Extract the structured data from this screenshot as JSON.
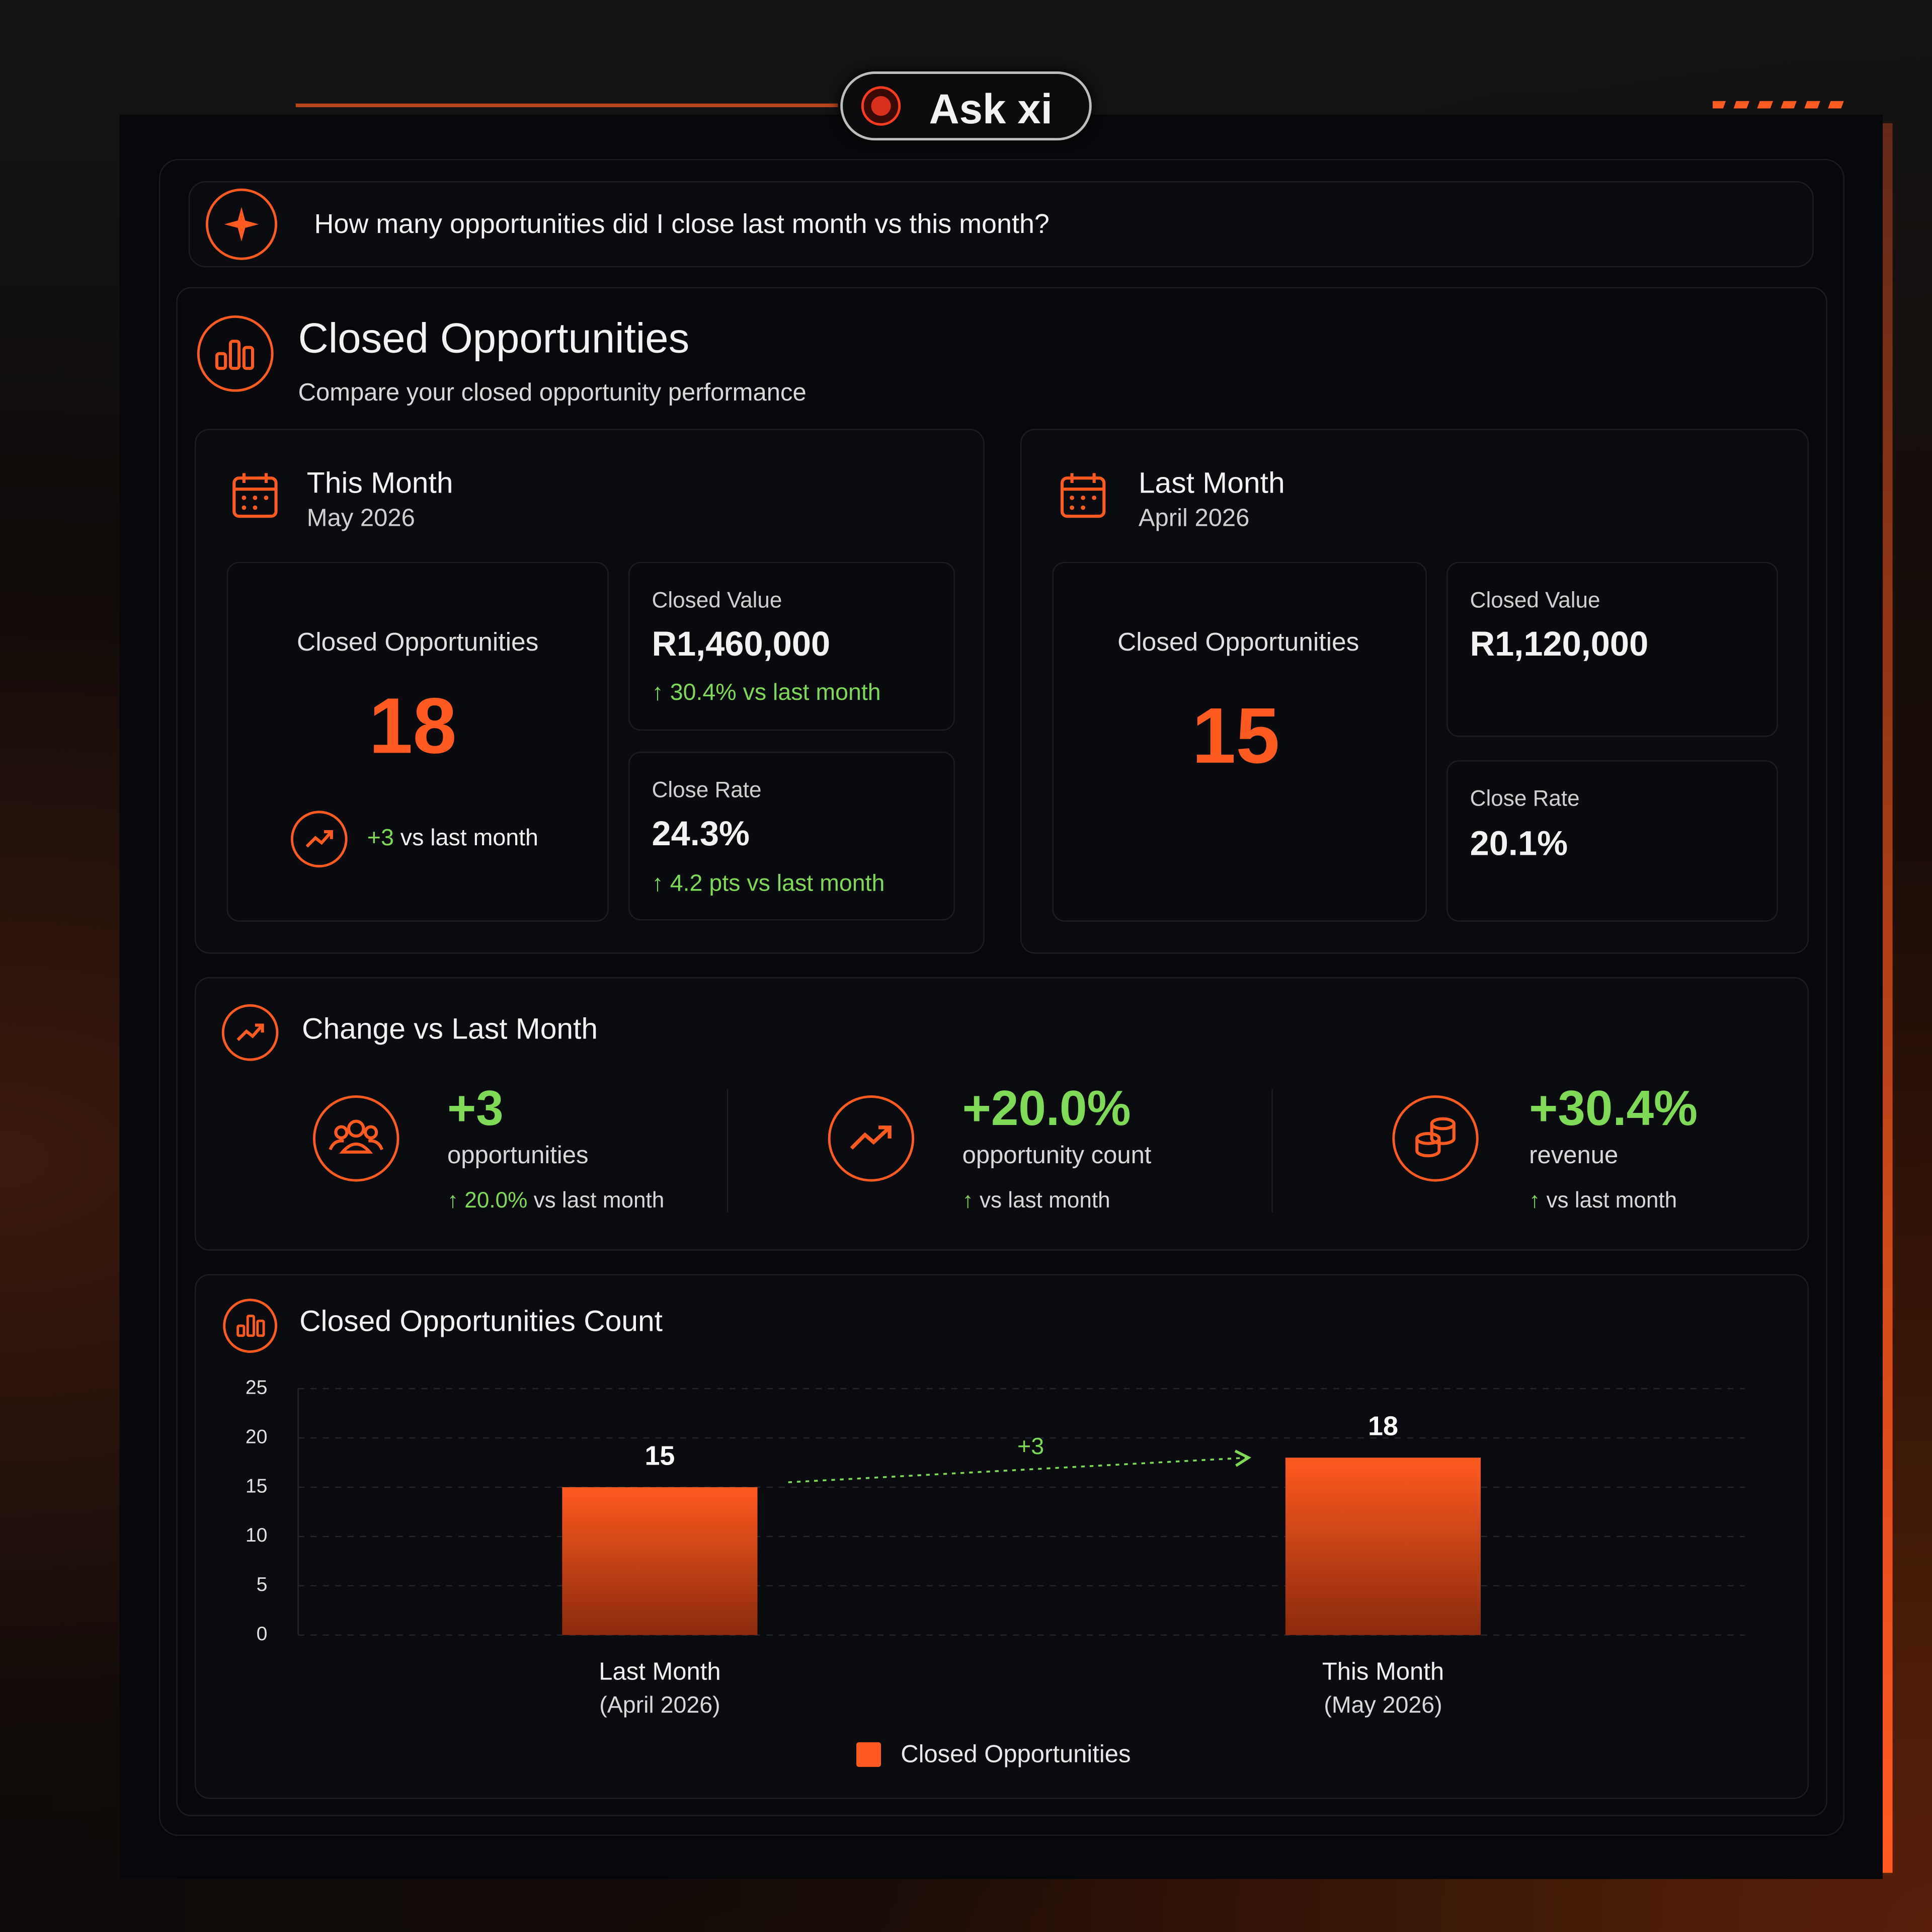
{
  "header": {
    "title": "Ask xi"
  },
  "question": "How many opportunities did I close last month vs this month?",
  "report": {
    "title": "Closed Opportunities",
    "subtitle": "Compare your closed opportunity performance"
  },
  "periods": [
    {
      "title": "This Month",
      "date": "May 2026",
      "count_label": "Closed Opportunities",
      "count": 18,
      "count_change": "+3",
      "count_change_text": "vs last month",
      "value_label": "Closed Value",
      "value": "R1,460,000",
      "value_change": "30.4% vs last month",
      "rate_label": "Close Rate",
      "rate": "24.3%",
      "rate_change": "4.2 pts vs last month"
    },
    {
      "title": "Last Month",
      "date": "April 2026",
      "count_label": "Closed Opportunities",
      "count": 15,
      "value_label": "Closed Value",
      "value": "R1,120,000",
      "rate_label": "Close Rate",
      "rate": "20.1%"
    }
  ],
  "change": {
    "title": "Change vs Last Month",
    "items": [
      {
        "value": "+3",
        "label": "opportunities",
        "note_value": "20.0%",
        "note": "vs last month"
      },
      {
        "value": "+20.0%",
        "label": "opportunity count",
        "note": "vs last month"
      },
      {
        "value": "+30.4%",
        "label": "revenue",
        "note": "vs last month"
      }
    ]
  },
  "chart_data": {
    "type": "bar",
    "title": "Closed Opportunities Count",
    "categories": [
      "Last Month",
      "This Month"
    ],
    "category_sublabels": [
      "(April 2026)",
      "(May 2026)"
    ],
    "series": [
      {
        "name": "Closed Opportunities",
        "color": "#ff5a1f",
        "values": [
          15,
          18
        ]
      }
    ],
    "annotation": "+3",
    "ylim": [
      0,
      25
    ],
    "yticks": [
      0,
      5,
      10,
      15,
      20,
      25
    ],
    "grid": true,
    "legend": "bottom"
  }
}
